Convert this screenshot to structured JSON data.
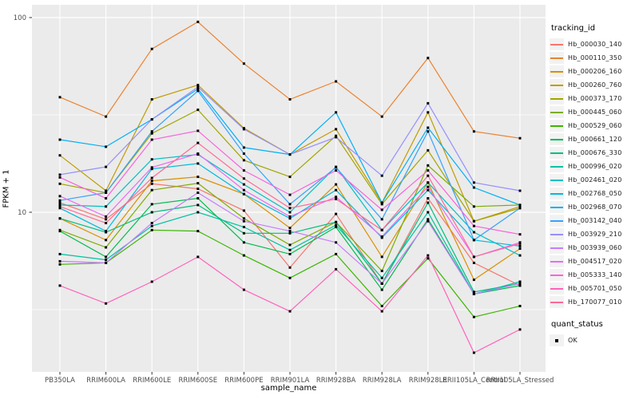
{
  "figure": {
    "x_axis_title": "sample_name",
    "y_axis_title": "FPKM + 1",
    "y_tick_labels": [
      "100",
      "10"
    ],
    "colors": {
      "panel_background": "#EBEBEB",
      "gridline": "#FFFFFF",
      "axis_text": "#4D4D4D",
      "tick_mark": "#333333",
      "point": "#000000",
      "legend_key_background": "#F2F2F2"
    },
    "legend": {
      "tracking_title": "tracking_id",
      "quant_title": "quant_status",
      "quant_ok_label": "OK"
    }
  },
  "chart_data": {
    "type": "line",
    "title": "",
    "xlabel": "sample_name",
    "ylabel": "FPKM + 1",
    "y_scale": "log10",
    "ylim": [
      1.5,
      112
    ],
    "y_major_ticks": [
      100,
      10
    ],
    "y_minor_gridlines": [
      31.62,
      3.162
    ],
    "grid": true,
    "legend_position": "right",
    "marker": "small black point at every vertex (quant_status = OK)",
    "categories": [
      "PB350LA",
      "RRIM600LA",
      "RRIM600LE",
      "RRIM600SE",
      "RRIM600PE",
      "RRIM901LA",
      "RRIM928BA",
      "RRIM928LA",
      "RRIM928LE",
      "RRII105LA_Control",
      "RRII105LA_Stressed"
    ],
    "series": [
      {
        "name": "Hb_000030_140",
        "color": "#F8766D",
        "values": [
          11.2,
          9.2,
          14.0,
          13.2,
          10.2,
          5.2,
          9.8,
          4.3,
          11.8,
          5.5,
          4.2
        ]
      },
      {
        "name": "Hb_000110_350",
        "color": "#EA8331",
        "values": [
          39,
          31,
          69,
          95,
          58,
          38,
          47,
          31,
          62,
          26,
          24
        ]
      },
      {
        "name": "Hb_000206_160",
        "color": "#D89000",
        "values": [
          9.3,
          7.2,
          14.5,
          15.2,
          12.4,
          8.3,
          13.9,
          5.9,
          14.2,
          4.5,
          6.5
        ]
      },
      {
        "name": "Hb_000260_760",
        "color": "#C09B00",
        "values": [
          19.6,
          12.9,
          38,
          45,
          27,
          19.8,
          26.7,
          11.2,
          32.6,
          9.0,
          10.7
        ]
      },
      {
        "name": "Hb_000373_170",
        "color": "#A3A500",
        "values": [
          14.0,
          12.6,
          25.4,
          33.6,
          18.5,
          15.2,
          24.7,
          11.0,
          20.8,
          9.0,
          10.5
        ]
      },
      {
        "name": "Hb_000445_060",
        "color": "#7CAE00",
        "values": [
          8.1,
          6.6,
          13.0,
          14.1,
          9.3,
          6.8,
          8.9,
          5.0,
          17.4,
          10.7,
          10.9
        ]
      },
      {
        "name": "Hb_000529_060",
        "color": "#39B600",
        "values": [
          5.4,
          5.5,
          8.1,
          8.0,
          6.0,
          4.6,
          6.1,
          3.3,
          5.8,
          2.9,
          3.3
        ]
      },
      {
        "name": "Hb_000661_120",
        "color": "#00BB4E",
        "values": [
          8.0,
          5.9,
          11.0,
          11.8,
          7.0,
          6.1,
          8.4,
          4.0,
          9.2,
          3.8,
          4.2
        ]
      },
      {
        "name": "Hb_000676_330",
        "color": "#00BF7D",
        "values": [
          9.3,
          7.9,
          10.0,
          10.9,
          7.8,
          7.8,
          8.9,
          4.3,
          11.2,
          3.9,
          4.3
        ]
      },
      {
        "name": "Hb_000996_020",
        "color": "#00C1A3",
        "values": [
          6.1,
          5.7,
          8.5,
          10.0,
          8.4,
          6.4,
          8.6,
          4.6,
          10.0,
          3.8,
          4.4
        ]
      },
      {
        "name": "Hb_002461_020",
        "color": "#00BFC4",
        "values": [
          10.9,
          10.7,
          18.7,
          19.8,
          13.9,
          10.0,
          17.1,
          8.1,
          14.2,
          7.9,
          6.0
        ]
      },
      {
        "name": "Hb_002768_050",
        "color": "#00BADE",
        "values": [
          10.5,
          8.0,
          16.7,
          17.8,
          12.4,
          9.3,
          13.0,
          7.4,
          13.0,
          7.2,
          6.7
        ]
      },
      {
        "name": "Hb_002968_070",
        "color": "#00B0F6",
        "values": [
          23.6,
          21.7,
          30.0,
          43,
          21.5,
          19.8,
          32.6,
          11.2,
          27.2,
          13.4,
          10.9
        ]
      },
      {
        "name": "Hb_003142_040",
        "color": "#35A2FF",
        "values": [
          11.5,
          12.6,
          26.0,
          42,
          20.0,
          11.0,
          17.0,
          9.2,
          26.0,
          7.2,
          10.5
        ]
      },
      {
        "name": "Hb_003929_210",
        "color": "#9590FF",
        "values": [
          15.6,
          17.1,
          30.0,
          44,
          26.7,
          19.8,
          24.3,
          15.4,
          36.3,
          14.2,
          12.9
        ]
      },
      {
        "name": "Hb_003939_060",
        "color": "#C77CFF",
        "values": [
          5.6,
          5.5,
          8.8,
          12.6,
          9.0,
          8.0,
          7.0,
          4.3,
          9.0,
          3.8,
          4.3
        ]
      },
      {
        "name": "Hb_004517_020",
        "color": "#E76BF3",
        "values": [
          12.1,
          9.5,
          17.0,
          20.0,
          13.0,
          9.5,
          12.0,
          7.5,
          13.5,
          5.9,
          7.0
        ]
      },
      {
        "name": "Hb_005333_140",
        "color": "#FA62DB",
        "values": [
          15.1,
          11.8,
          23.6,
          26.2,
          16.4,
          12.3,
          16.4,
          10.3,
          16.4,
          8.5,
          7.7
        ]
      },
      {
        "name": "Hb_005701_050",
        "color": "#FF62BC",
        "values": [
          4.2,
          3.4,
          4.4,
          5.9,
          4.0,
          3.1,
          5.1,
          3.1,
          6.0,
          1.9,
          2.5
        ]
      },
      {
        "name": "Hb_170077_010",
        "color": "#FF6A98",
        "values": [
          10.7,
          8.8,
          15.0,
          22.7,
          14.9,
          10.5,
          11.7,
          8.1,
          15.4,
          5.9,
          6.9
        ]
      }
    ],
    "quant_status_values": [
      "OK"
    ]
  }
}
